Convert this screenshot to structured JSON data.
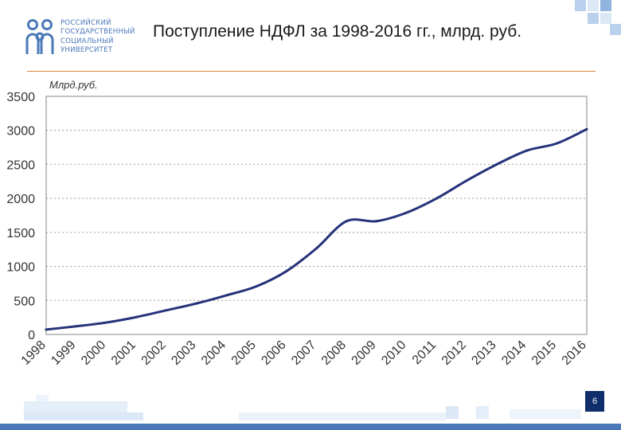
{
  "logo": {
    "lines": [
      "РОССИЙСКИЙ",
      "ГОСУДАРСТВЕННЫЙ",
      "СОЦИАЛЬНЫЙ",
      "УНИВЕРСИТЕТ"
    ]
  },
  "slide": {
    "title": "Поступление НДФЛ за 1998-2016 гг., млрд. руб.",
    "page_number": "6"
  },
  "colors": {
    "line": "#26327a",
    "frame": "#9a9a9a",
    "grid": "#9a9a9a",
    "accent_rule": "#d98a3a",
    "logo": "#4a78b8",
    "badge": "#0f2e6b"
  },
  "chart_data": {
    "type": "line",
    "title": "",
    "ylabel": "Млрд.руб.",
    "xlabel": "",
    "ylim": [
      0,
      3500
    ],
    "yticks": [
      "0",
      "500",
      "1000",
      "1500",
      "2000",
      "2500",
      "3000",
      "3500"
    ],
    "grid": "horizontal dotted",
    "legend": "none",
    "categories": [
      "1998",
      "1999",
      "2000",
      "2001",
      "2002",
      "2003",
      "2004",
      "2005",
      "2006",
      "2007",
      "2008",
      "2009",
      "2010",
      "2011",
      "2012",
      "2013",
      "2014",
      "2015",
      "2016"
    ],
    "series": [
      {
        "name": "",
        "values": [
          72,
          120,
          175,
          255,
          355,
          455,
          575,
          707,
          930,
          1266,
          1665,
          1665,
          1790,
          2000,
          2261,
          2499,
          2702,
          2808,
          3017
        ]
      }
    ]
  }
}
